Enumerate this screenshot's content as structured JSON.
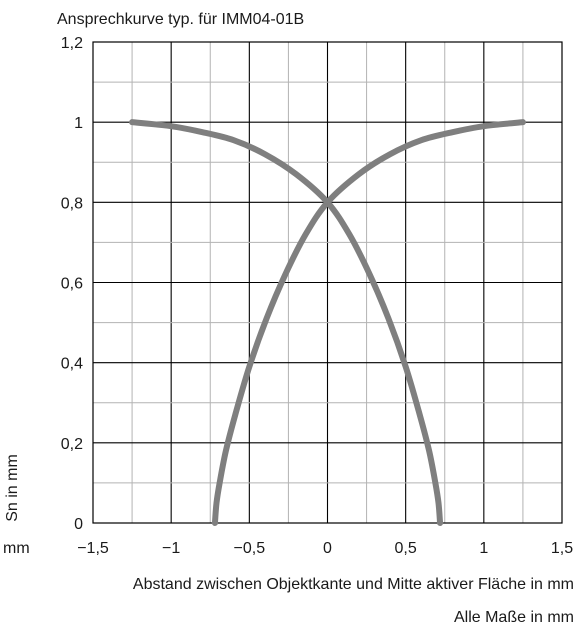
{
  "chart_data": {
    "type": "line",
    "title": "Ansprechkurve typ. für IMM04-01B",
    "xlabel": "Abstand zwischen Objektkante und Mitte aktiver Fläche in mm",
    "ylabel": "Sn in mm",
    "x_unit_label": "mm",
    "footnote": "Alle Maße in mm",
    "xlim": [
      -1.5,
      1.5
    ],
    "ylim": [
      0,
      1.2
    ],
    "x_ticks": [
      "−1,5",
      "−1",
      "−0,5",
      "0",
      "0,5",
      "1",
      "1,5"
    ],
    "y_ticks": [
      "0",
      "0,2",
      "0,4",
      "0,6",
      "0,8",
      "1",
      "1,2"
    ],
    "grid": true,
    "curve_color": "#7f7f7f",
    "series": [
      {
        "x": [
          -0.72,
          -0.71,
          -0.69,
          -0.65,
          -0.59,
          -0.5,
          -0.39,
          -0.27,
          -0.14,
          0.0,
          0.2,
          0.4,
          0.6,
          0.8,
          1.0,
          1.25
        ],
        "y": [
          0.0,
          0.05,
          0.1,
          0.18,
          0.27,
          0.39,
          0.51,
          0.62,
          0.72,
          0.8,
          0.87,
          0.92,
          0.955,
          0.975,
          0.99,
          1.0
        ]
      },
      {
        "x": [
          0.72,
          0.71,
          0.69,
          0.65,
          0.59,
          0.5,
          0.39,
          0.27,
          0.14,
          0.0,
          -0.2,
          -0.4,
          -0.6,
          -0.8,
          -1.0,
          -1.25
        ],
        "y": [
          0.0,
          0.05,
          0.1,
          0.18,
          0.27,
          0.39,
          0.51,
          0.62,
          0.72,
          0.8,
          0.87,
          0.92,
          0.955,
          0.975,
          0.99,
          1.0
        ]
      }
    ]
  }
}
